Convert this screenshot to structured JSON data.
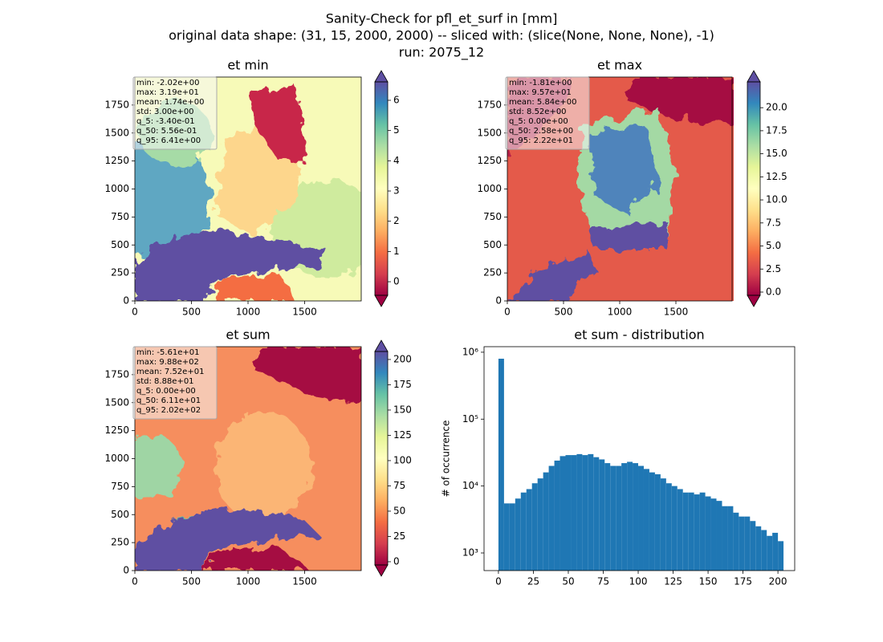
{
  "suptitle": [
    "Sanity-Check for pfl_et_surf in [mm]",
    "original data shape: (31, 15, 2000, 2000) -- sliced with: (slice(None, None, None), -1)",
    "run: 2075_12"
  ],
  "chart_data": [
    {
      "type": "heatmap",
      "title": "et min",
      "xlim": [
        0,
        2000
      ],
      "ylim": [
        0,
        2000
      ],
      "xticks": [
        0,
        500,
        1000,
        1500
      ],
      "yticks": [
        0,
        250,
        500,
        750,
        1000,
        1250,
        1500,
        1750
      ],
      "colormap": "Spectral",
      "clim": [
        -0.45,
        6.61
      ],
      "cticks": [
        0,
        1,
        2,
        3,
        4,
        5,
        6
      ],
      "stats": [
        "min: -2.02e+00",
        "max: 3.19e+01",
        "mean: 1.74e+00",
        "std: 3.00e+00",
        "q_5: -3.40e-01",
        "q_50: 5.56e-01",
        "q_95: 6.41e+00"
      ]
    },
    {
      "type": "heatmap",
      "title": "et max",
      "xlim": [
        0,
        2000
      ],
      "ylim": [
        0,
        2000
      ],
      "xticks": [
        0,
        500,
        1000,
        1500
      ],
      "yticks": [
        0,
        250,
        500,
        750,
        1000,
        1250,
        1500,
        1750
      ],
      "colormap": "Spectral",
      "clim": [
        -0.35,
        22.8
      ],
      "cticks": [
        {
          "value": 0,
          "label": "0.0"
        },
        2.5,
        {
          "value": 5,
          "label": "5.0"
        },
        7.5,
        {
          "value": 10,
          "label": "10.0"
        },
        12.5,
        {
          "value": 15,
          "label": "15.0"
        },
        17.5,
        {
          "value": 20,
          "label": "20.0"
        }
      ],
      "stats": [
        "min: -1.81e+00",
        "max: 9.57e+01",
        "mean: 5.84e+00",
        "std: 8.52e+00",
        "q_5: 0.00e+00",
        "q_50: 2.58e+00",
        "q_95: 2.22e+01"
      ]
    },
    {
      "type": "heatmap",
      "title": "et sum",
      "xlim": [
        0,
        2000
      ],
      "ylim": [
        0,
        2000
      ],
      "xticks": [
        0,
        500,
        1000,
        1500
      ],
      "yticks": [
        0,
        250,
        500,
        750,
        1000,
        1250,
        1500,
        1750
      ],
      "colormap": "Spectral",
      "clim": [
        -3.2,
        207.9
      ],
      "cticks": [
        0,
        25,
        50,
        75,
        100,
        125,
        150,
        175,
        200
      ],
      "stats": [
        "min: -5.61e+01",
        "max: 9.88e+02",
        "mean: 7.52e+01",
        "std: 8.88e+01",
        "q_5: 0.00e+00",
        "q_50: 6.11e+01",
        "q_95: 2.02e+02"
      ]
    },
    {
      "type": "histogram",
      "title": "et sum - distribution",
      "ylabel": "# of occurrence",
      "color": "#1f77b4",
      "log_y": true,
      "xlim": [
        -10.3,
        212
      ],
      "ylim": [
        545,
        1210000
      ],
      "xticks": [
        0,
        25,
        50,
        75,
        100,
        125,
        150,
        175,
        200
      ],
      "yticks": [
        {
          "value": 1000,
          "label": "10³"
        },
        {
          "value": 10000,
          "label": "10⁴"
        },
        {
          "value": 100000,
          "label": "10⁵"
        },
        {
          "value": 1000000,
          "label": "10⁶"
        }
      ],
      "bins": [
        0,
        4,
        8,
        12,
        16,
        20,
        24,
        28,
        32,
        36,
        40,
        44,
        48,
        52,
        56,
        60,
        64,
        68,
        72,
        76,
        80,
        84,
        88,
        92,
        96,
        100,
        104,
        108,
        112,
        116,
        120,
        124,
        128,
        132,
        136,
        140,
        144,
        148,
        152,
        156,
        160,
        164,
        168,
        172,
        176,
        180,
        184,
        188,
        192,
        196,
        200,
        204
      ],
      "counts": [
        800000,
        5500,
        5500,
        6500,
        8000,
        9000,
        11000,
        13000,
        16000,
        20000,
        24000,
        28000,
        29000,
        29000,
        30000,
        29000,
        30000,
        27000,
        25000,
        22000,
        20000,
        20000,
        22000,
        23000,
        22000,
        20000,
        18000,
        16000,
        15000,
        13000,
        11000,
        10000,
        9000,
        8000,
        8000,
        7500,
        8000,
        7000,
        6500,
        6000,
        5000,
        5000,
        4000,
        3500,
        3500,
        3000,
        2500,
        2200,
        1800,
        2000,
        1500
      ]
    }
  ]
}
